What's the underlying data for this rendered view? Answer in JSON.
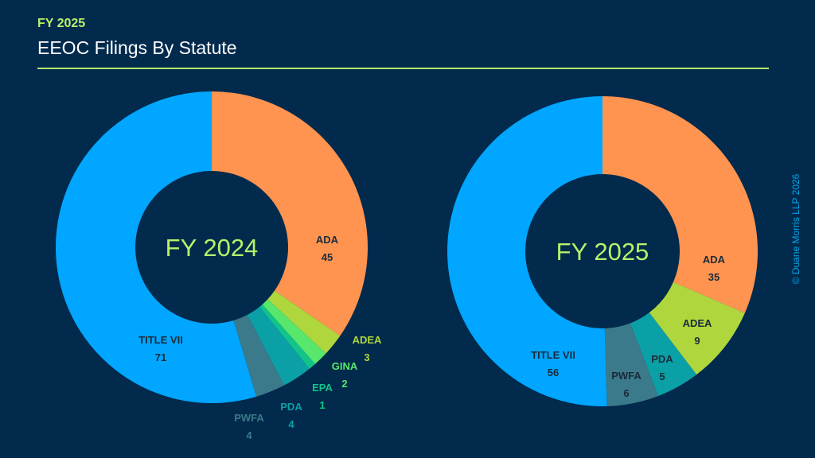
{
  "header": {
    "kicker": "FY 2025",
    "title": "EEOC Filings By Statute"
  },
  "copyright": "© Duane Morris LLP 2026",
  "colors": {
    "background": "#022a4c",
    "accent": "#b6f26a",
    "center_text": "#b6f26a",
    "ADA": "#ff9450",
    "ADEA": "#afd63c",
    "GINA": "#58e66c",
    "EPA": "#12c48a",
    "PDA": "#0ba0a6",
    "PWFA": "#3b7a8a",
    "TITLE VII": "#00a6ff"
  },
  "chart_data": [
    {
      "type": "pie",
      "center_label": "FY 2024",
      "categories": [
        "ADA",
        "ADEA",
        "GINA",
        "EPA",
        "PDA",
        "PWFA",
        "TITLE VII"
      ],
      "values": [
        45,
        3,
        2,
        1,
        4,
        4,
        71
      ]
    },
    {
      "type": "pie",
      "center_label": "FY 2025",
      "categories": [
        "ADA",
        "ADEA",
        "PDA",
        "PWFA",
        "TITLE VII"
      ],
      "values": [
        35,
        9,
        5,
        6,
        56
      ]
    }
  ]
}
